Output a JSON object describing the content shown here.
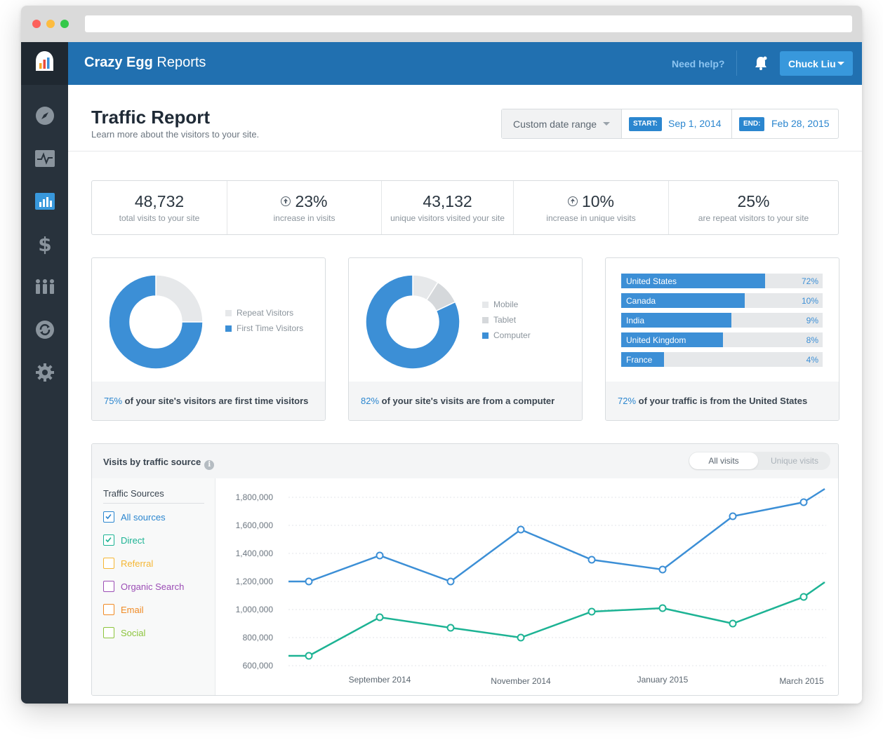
{
  "app": {
    "brand_bold": "Crazy Egg",
    "brand_rest": "Reports",
    "help": "Need help?",
    "user": "Chuck Liu"
  },
  "sidebar": {
    "items": [
      {
        "icon": "compass-icon"
      },
      {
        "icon": "pulse-icon"
      },
      {
        "icon": "bar-chart-icon",
        "active": true
      },
      {
        "icon": "dollar-icon"
      },
      {
        "icon": "users-icon"
      },
      {
        "icon": "refresh-icon"
      },
      {
        "icon": "gear-icon"
      }
    ]
  },
  "header": {
    "title": "Traffic Report",
    "subtitle": "Learn more about the visitors to your site.",
    "range_select": "Custom date range",
    "start_tag": "START:",
    "start_date": "Sep 1, 2014",
    "end_tag": "END:",
    "end_date": "Feb 28, 2015"
  },
  "stats": [
    {
      "value": "48,732",
      "label": "total visits to your site",
      "up": false
    },
    {
      "value": "23%",
      "label": "increase in visits",
      "up": true
    },
    {
      "value": "43,132",
      "label": "unique visitors visited your site",
      "up": false
    },
    {
      "value": "10%",
      "label": "increase in unique visits",
      "up": true
    },
    {
      "value": "25%",
      "label": "are repeat visitors to your site",
      "up": false
    }
  ],
  "visitor_card": {
    "legend": [
      "Repeat Visitors",
      "First Time Visitors"
    ],
    "pct": "75%",
    "text": " of your site's visitors are first time visitors"
  },
  "device_card": {
    "legend": [
      "Mobile",
      "Tablet",
      "Computer"
    ],
    "pct": "82%",
    "text": " of your site's visits are from a computer"
  },
  "country_card": {
    "countries": [
      {
        "name": "United States",
        "pct": "72%",
        "value": 72
      },
      {
        "name": "Canada",
        "pct": "10%",
        "value": 10
      },
      {
        "name": "India",
        "pct": "9%",
        "value": 9
      },
      {
        "name": "United Kingdom",
        "pct": "8%",
        "value": 8
      },
      {
        "name": "France",
        "pct": "4%",
        "value": 4
      }
    ],
    "pct": "72%",
    "text": " of your traffic is from the United States"
  },
  "graph": {
    "title": "Visits by traffic source",
    "toggle_on": "All visits",
    "toggle_off": "Unique visits",
    "sources_title": "Traffic Sources",
    "sources": [
      {
        "label": "All sources",
        "checked": true,
        "color": "#2b86cf"
      },
      {
        "label": "Direct",
        "checked": true,
        "color": "#1db394"
      },
      {
        "label": "Referral",
        "checked": false,
        "color": "#f5b633"
      },
      {
        "label": "Organic Search",
        "checked": false,
        "color": "#9b4db5"
      },
      {
        "label": "Email",
        "checked": false,
        "color": "#f08a24"
      },
      {
        "label": "Social",
        "checked": false,
        "color": "#8cc43c"
      }
    ]
  },
  "colors": {
    "primary": "#2170b0",
    "accent": "#3c8fd6",
    "teal": "#1db394",
    "sidebar": "#28323c"
  },
  "chart_data": [
    {
      "type": "pie",
      "categories": [
        "Repeat Visitors",
        "First Time Visitors"
      ],
      "values": [
        25,
        75
      ],
      "colors": [
        "#e6e8ea",
        "#3c8fd6"
      ]
    },
    {
      "type": "pie",
      "categories": [
        "Mobile",
        "Tablet",
        "Computer"
      ],
      "values": [
        9,
        9,
        82
      ],
      "colors": [
        "#e6e8ea",
        "#d5d8db",
        "#3c8fd6"
      ]
    },
    {
      "type": "bar",
      "categories": [
        "United States",
        "Canada",
        "India",
        "United Kingdom",
        "France"
      ],
      "values": [
        72,
        10,
        9,
        8,
        4
      ]
    },
    {
      "type": "line",
      "x_ticks": [
        "September 2014",
        "November 2014",
        "January 2015",
        "March 2015"
      ],
      "ylim": [
        600000,
        1800000
      ],
      "y_ticks": [
        "600,000",
        "800,000",
        "1,000,000",
        "1,200,000",
        "1,400,000",
        "1,600,000",
        "1,800,000"
      ],
      "series": [
        {
          "name": "All sources",
          "color": "#3c8fd6",
          "values": [
            1200000,
            1200000,
            1385000,
            1200000,
            1570000,
            1355000,
            1285000,
            1665000,
            1765000,
            1860000
          ]
        },
        {
          "name": "Direct",
          "color": "#1db394",
          "values": [
            670000,
            670000,
            945000,
            870000,
            800000,
            985000,
            1010000,
            900000,
            1090000,
            1195000
          ]
        }
      ],
      "markers": [
        false,
        true,
        true,
        true,
        true,
        true,
        true,
        true,
        true,
        false
      ],
      "grid": true
    }
  ]
}
